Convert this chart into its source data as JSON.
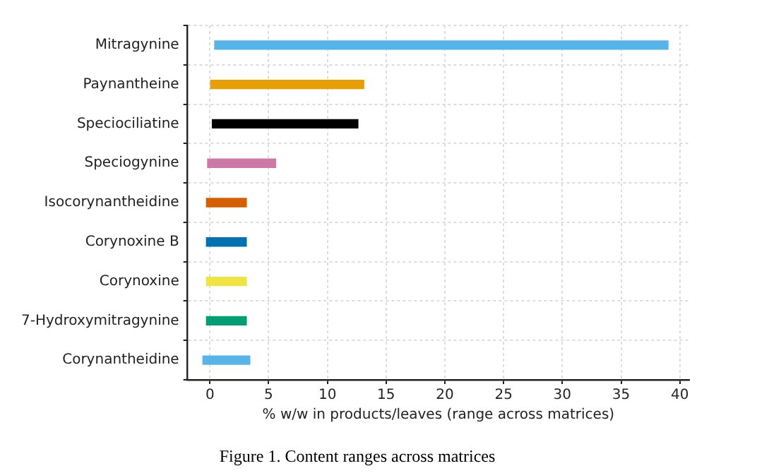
{
  "chart_data": {
    "type": "bar",
    "orientation": "horizontal",
    "categories": [
      "Mitragynine",
      "Paynantheine",
      "Speciociliatine",
      "Speciogynine",
      "Isocorynantheidine",
      "Corynoxine B",
      "Corynoxine",
      "7-Hydroxymitragynine",
      "Corynantheidine"
    ],
    "base": [
      0.4,
      0,
      0.2,
      -0.2,
      -0.3,
      -0.3,
      -0.3,
      -0.3,
      -0.6
    ],
    "values": [
      38.6,
      13.1,
      12.4,
      5.8,
      3.4,
      3.4,
      3.4,
      3.4,
      4.0
    ],
    "colors": [
      "#56b4e9",
      "#e69f00",
      "#000000",
      "#cc79a7",
      "#d55e00",
      "#0072b2",
      "#f0e442",
      "#009e73",
      "#56b4e9"
    ],
    "xlabel": "% w/w in products/leaves (range across matrices)",
    "xlim": [
      -1.9,
      40.8
    ],
    "xticks": [
      0,
      5,
      10,
      15,
      20,
      25,
      30,
      35,
      40
    ],
    "grid": true,
    "legend": false,
    "annotations": [
      "Figure 1. Content ranges across matrices"
    ]
  }
}
